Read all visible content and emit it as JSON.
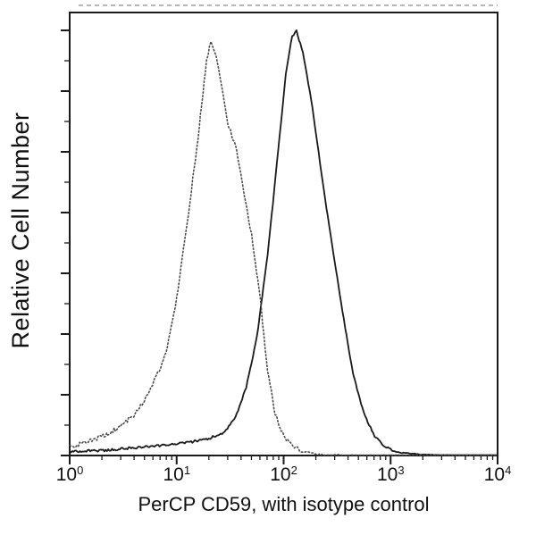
{
  "figure": {
    "background": "#ffffff",
    "line_color": "#1a1a1a",
    "dotted_color": "#4a4a4a",
    "border_color": "#1a1a1a"
  },
  "y_axis": {
    "label": "Relative Cell Number"
  },
  "x_axis": {
    "title": "PerCP CD59, with isotype control",
    "log_min": 0,
    "log_max": 4,
    "ticks": [
      {
        "base": "10",
        "exp": "0"
      },
      {
        "base": "10",
        "exp": "1"
      },
      {
        "base": "10",
        "exp": "2"
      },
      {
        "base": "10",
        "exp": "3"
      },
      {
        "base": "10",
        "exp": "4"
      }
    ]
  },
  "chart_data": {
    "type": "line",
    "title": "",
    "xlabel": "PerCP CD59, with isotype control",
    "ylabel": "Relative Cell Number",
    "x_scale": "log10",
    "x_range": [
      1,
      10000
    ],
    "y_range_note": "relative cell number, unlabeled axis, heights normalized 0-1",
    "legend_position": "none",
    "grid": false,
    "series": [
      {
        "name": "PerCP CD59",
        "style": "solid",
        "points_log10x_height": [
          [
            0.0,
            0.01
          ],
          [
            0.3,
            0.012
          ],
          [
            0.6,
            0.018
          ],
          [
            0.9,
            0.025
          ],
          [
            1.1,
            0.03
          ],
          [
            1.3,
            0.04
          ],
          [
            1.45,
            0.055
          ],
          [
            1.55,
            0.09
          ],
          [
            1.65,
            0.16
          ],
          [
            1.75,
            0.28
          ],
          [
            1.85,
            0.47
          ],
          [
            1.95,
            0.72
          ],
          [
            2.02,
            0.9
          ],
          [
            2.08,
            0.99
          ],
          [
            2.12,
            1.0
          ],
          [
            2.18,
            0.95
          ],
          [
            2.27,
            0.82
          ],
          [
            2.35,
            0.67
          ],
          [
            2.45,
            0.5
          ],
          [
            2.55,
            0.34
          ],
          [
            2.65,
            0.19
          ],
          [
            2.75,
            0.1
          ],
          [
            2.85,
            0.045
          ],
          [
            2.95,
            0.02
          ],
          [
            3.05,
            0.008
          ],
          [
            3.3,
            0.002
          ],
          [
            3.6,
            0.0
          ],
          [
            4.0,
            0.0
          ]
        ]
      },
      {
        "name": "isotype control",
        "style": "dotted",
        "points_log10x_height": [
          [
            0.0,
            0.02
          ],
          [
            0.15,
            0.03
          ],
          [
            0.3,
            0.045
          ],
          [
            0.45,
            0.065
          ],
          [
            0.6,
            0.095
          ],
          [
            0.7,
            0.13
          ],
          [
            0.8,
            0.18
          ],
          [
            0.9,
            0.24
          ],
          [
            1.0,
            0.37
          ],
          [
            1.1,
            0.55
          ],
          [
            1.2,
            0.75
          ],
          [
            1.28,
            0.93
          ],
          [
            1.32,
            0.98
          ],
          [
            1.38,
            0.93
          ],
          [
            1.48,
            0.78
          ],
          [
            1.56,
            0.72
          ],
          [
            1.62,
            0.63
          ],
          [
            1.7,
            0.52
          ],
          [
            1.78,
            0.37
          ],
          [
            1.85,
            0.2
          ],
          [
            1.92,
            0.1
          ],
          [
            2.0,
            0.045
          ],
          [
            2.1,
            0.02
          ],
          [
            2.2,
            0.008
          ],
          [
            2.35,
            0.002
          ],
          [
            2.6,
            0.0
          ],
          [
            4.0,
            0.0
          ]
        ]
      }
    ]
  }
}
